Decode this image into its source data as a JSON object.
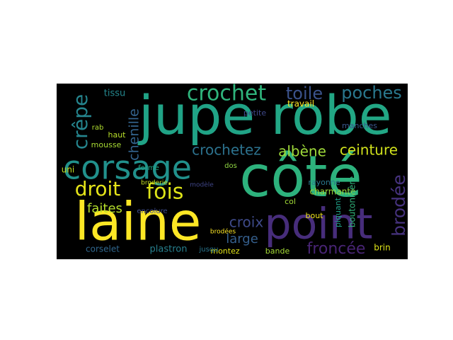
{
  "chart_data": {
    "type": "wordcloud",
    "background": "#000000",
    "words": [
      {
        "text": "jupe",
        "weight": 76,
        "color": "#20a386"
      },
      {
        "text": "robe",
        "weight": 76,
        "color": "#22a785"
      },
      {
        "text": "côté",
        "weight": 80,
        "color": "#2db27d"
      },
      {
        "text": "laine",
        "weight": 74,
        "color": "#fde725"
      },
      {
        "text": "point",
        "weight": 60,
        "color": "#472d7b"
      },
      {
        "text": "corsage",
        "weight": 46,
        "color": "#21918c"
      },
      {
        "text": "crochet",
        "weight": 30,
        "color": "#2fb47c"
      },
      {
        "text": "toile",
        "weight": 24,
        "color": "#3b528b"
      },
      {
        "text": "poches",
        "weight": 24,
        "color": "#2a788e"
      },
      {
        "text": "crêpe",
        "weight": 28,
        "color": "#25858e"
      },
      {
        "text": "chenille",
        "weight": 19,
        "color": "#33638d"
      },
      {
        "text": "droit",
        "weight": 28,
        "color": "#e5e419"
      },
      {
        "text": "fois",
        "weight": 30,
        "color": "#dde318"
      },
      {
        "text": "faites",
        "weight": 18,
        "color": "#b5de2b"
      },
      {
        "text": "crochetez",
        "weight": 20,
        "color": "#2c728e"
      },
      {
        "text": "albène",
        "weight": 20,
        "color": "#9fda3a"
      },
      {
        "text": "ceinture",
        "weight": 20,
        "color": "#d0e11c"
      },
      {
        "text": "croix",
        "weight": 20,
        "color": "#3e4a89"
      },
      {
        "text": "large",
        "weight": 18,
        "color": "#355f8d"
      },
      {
        "text": "froncée",
        "weight": 22,
        "color": "#482475"
      },
      {
        "text": "brodée",
        "weight": 25,
        "color": "#46327e"
      },
      {
        "text": "plastron",
        "weight": 13,
        "color": "#27808e"
      },
      {
        "text": "corselet",
        "weight": 12,
        "color": "#31688e"
      },
      {
        "text": "tissu",
        "weight": 13,
        "color": "#24878e"
      },
      {
        "text": "travail",
        "weight": 12,
        "color": "#fde725"
      },
      {
        "text": "petite",
        "weight": 11,
        "color": "#3f4889"
      },
      {
        "text": "mousse",
        "weight": 11,
        "color": "#a8db34"
      },
      {
        "text": "haut",
        "weight": 11,
        "color": "#b8de29"
      },
      {
        "text": "rab",
        "weight": 10,
        "color": "#b0dd2f"
      },
      {
        "text": "uni",
        "weight": 12,
        "color": "#c2df23"
      },
      {
        "text": "montez",
        "weight": 11,
        "color": "#e2e418"
      },
      {
        "text": "bande",
        "weight": 11,
        "color": "#a5db36"
      },
      {
        "text": "brin",
        "weight": 12,
        "color": "#dde318"
      },
      {
        "text": "charmante",
        "weight": 12,
        "color": "#9bd93c"
      },
      {
        "text": "rayonne",
        "weight": 11,
        "color": "#2a788e"
      },
      {
        "text": "boutonnière",
        "weight": 12,
        "color": "#31b57b"
      },
      {
        "text": "manches",
        "weight": 11,
        "color": "#39568c"
      },
      {
        "text": "bout",
        "weight": 11,
        "color": "#f1e51d"
      },
      {
        "text": "dos",
        "weight": 10,
        "color": "#90d743"
      },
      {
        "text": "forme",
        "weight": 10,
        "color": "#22a884"
      },
      {
        "text": "encolure",
        "weight": 10,
        "color": "#3e4c8a"
      },
      {
        "text": "broderie",
        "weight": 9,
        "color": "#c5e021"
      },
      {
        "text": "modèle",
        "weight": 9,
        "color": "#404688"
      },
      {
        "text": "jusqu",
        "weight": 10,
        "color": "#2a768e"
      },
      {
        "text": "col",
        "weight": 11,
        "color": "#a2da37"
      },
      {
        "text": "piquant",
        "weight": 11,
        "color": "#1fa188"
      },
      {
        "text": "brodées",
        "weight": 9,
        "color": "#fde725"
      }
    ]
  }
}
